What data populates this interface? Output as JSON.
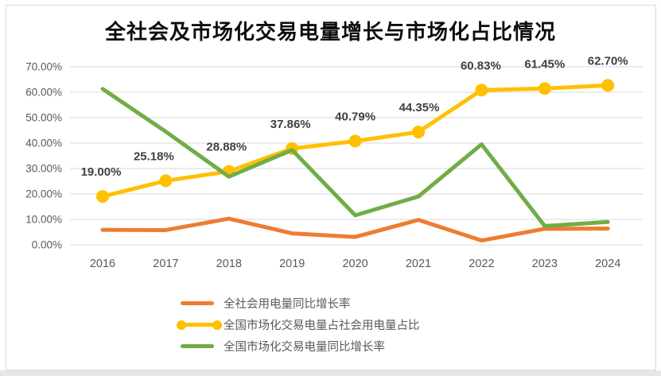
{
  "title": "全社会及市场化交易电量增长与市场化占比情况",
  "chart_data": {
    "type": "line",
    "categories": [
      "2016",
      "2017",
      "2018",
      "2019",
      "2020",
      "2021",
      "2022",
      "2023",
      "2024"
    ],
    "series": [
      {
        "name": "全社会用电量同比增长率",
        "color": "#ED7D31",
        "marker": false,
        "values": [
          5.9,
          5.8,
          10.3,
          4.5,
          3.1,
          9.8,
          1.7,
          6.3,
          6.4
        ]
      },
      {
        "name": "全国市场化交易电量占社会用电量占比",
        "color": "#FFC000",
        "marker": true,
        "values": [
          19.0,
          25.18,
          28.88,
          37.86,
          40.79,
          44.35,
          60.83,
          61.45,
          62.7
        ],
        "point_labels": [
          "19.00%",
          "25.18%",
          "28.88%",
          "37.86%",
          "40.79%",
          "44.35%",
          "60.83%",
          "61.45%",
          "62.70%"
        ],
        "point_label_dx": [
          -2,
          -15,
          -3,
          -2,
          0,
          1,
          -1,
          0,
          0
        ]
      },
      {
        "name": "全国市场化交易电量同比增长率",
        "color": "#70AD47",
        "marker": false,
        "values": [
          61.3,
          44.5,
          26.8,
          37.3,
          11.6,
          19.0,
          39.5,
          7.4,
          9.0
        ]
      }
    ],
    "ylim": [
      0,
      70
    ],
    "ytick_step": 10,
    "yticks": [
      "70.00%",
      "60.00%",
      "50.00%",
      "40.00%",
      "30.00%",
      "20.00%",
      "10.00%",
      "0.00%"
    ],
    "grid": true,
    "legend_position": "bottom",
    "xlabel": "",
    "ylabel": ""
  },
  "colors": {
    "grid": "#D9D9D9",
    "tick_text": "#595959",
    "data_label": "#404040",
    "border": "#D9D9D9",
    "bottom_strip": "#E6E6E6"
  }
}
